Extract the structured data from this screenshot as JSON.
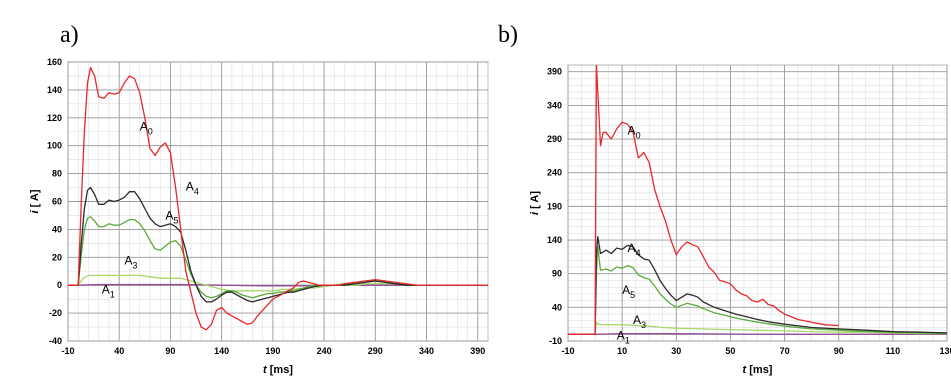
{
  "chart_data": [
    {
      "panel_label": "a)",
      "type": "line",
      "xlabel_italic": "t",
      "xlabel_unit": "[ms]",
      "ylabel_italic": "i",
      "ylabel_unit": "[ A]",
      "xlim": [
        -10,
        400
      ],
      "ylim": [
        -40,
        160
      ],
      "xticks": [
        "-10",
        "40",
        "90",
        "140",
        "190",
        "240",
        "290",
        "340",
        "390"
      ],
      "yticks": [
        "-40",
        "-20",
        "0",
        "20",
        "40",
        "60",
        "80",
        "100",
        "120",
        "140",
        "160"
      ],
      "grid": true,
      "series": [
        {
          "label_main": "A",
          "label_sub": "0",
          "color": "#e8282b",
          "label_at": [
            60,
            111
          ],
          "x": [
            -10,
            0,
            3,
            6,
            9,
            12,
            16,
            20,
            25,
            30,
            35,
            40,
            45,
            50,
            55,
            60,
            65,
            70,
            75,
            80,
            85,
            90,
            95,
            100,
            105,
            110,
            115,
            120,
            125,
            130,
            135,
            140,
            145,
            150,
            155,
            160,
            165,
            170,
            175,
            180,
            185,
            190,
            195,
            200,
            205,
            210,
            215,
            220,
            225,
            230,
            235,
            240,
            245,
            250,
            255,
            260,
            270,
            280,
            290,
            300,
            310,
            320,
            330,
            340,
            350,
            360,
            370,
            380,
            390,
            400
          ],
          "y": [
            0,
            0,
            60,
            110,
            145,
            156,
            150,
            135,
            134,
            138,
            137,
            138,
            145,
            150,
            148,
            138,
            120,
            98,
            93,
            99,
            102,
            95,
            70,
            40,
            10,
            -5,
            -20,
            -30,
            -32,
            -28,
            -18,
            -16,
            -20,
            -22,
            -24,
            -26,
            -28,
            -27,
            -22,
            -18,
            -14,
            -10,
            -8,
            -6,
            -4,
            -2,
            2,
            3,
            2,
            1,
            0,
            0,
            0,
            0,
            0,
            1,
            2,
            3,
            4,
            3,
            2,
            1,
            0,
            0,
            0,
            0,
            0,
            0,
            0,
            0
          ]
        },
        {
          "label_main": "A",
          "label_sub": "4",
          "color": "#2a2a2a",
          "label_at": [
            105,
            68
          ],
          "x": [
            -10,
            0,
            3,
            6,
            9,
            12,
            16,
            20,
            25,
            30,
            35,
            40,
            45,
            50,
            55,
            60,
            65,
            70,
            75,
            80,
            85,
            90,
            95,
            100,
            105,
            110,
            115,
            120,
            125,
            130,
            135,
            140,
            145,
            150,
            155,
            160,
            165,
            170,
            175,
            180,
            185,
            190,
            195,
            200,
            205,
            210,
            215,
            220,
            225,
            230,
            240,
            250,
            260,
            270,
            280,
            290,
            300,
            310,
            320,
            330,
            340,
            350,
            360,
            370,
            380,
            390,
            400
          ],
          "y": [
            0,
            0,
            30,
            55,
            68,
            70,
            65,
            58,
            58,
            61,
            60,
            61,
            63,
            67,
            67,
            62,
            55,
            48,
            44,
            42,
            43,
            44,
            42,
            38,
            25,
            10,
            0,
            -8,
            -12,
            -12,
            -10,
            -7,
            -5,
            -5,
            -7,
            -9,
            -11,
            -12,
            -11,
            -10,
            -9,
            -8,
            -7,
            -6,
            -5,
            -5,
            -4,
            -3,
            -2,
            -1,
            0,
            0,
            0,
            1,
            2,
            3,
            2,
            1,
            0,
            0,
            0,
            0,
            0,
            0,
            0,
            0,
            0
          ]
        },
        {
          "label_main": "A",
          "label_sub": "5",
          "color": "#5aaa3c",
          "label_at": [
            85,
            47
          ],
          "x": [
            -10,
            0,
            3,
            6,
            9,
            12,
            16,
            20,
            25,
            30,
            35,
            40,
            45,
            50,
            55,
            60,
            65,
            70,
            75,
            80,
            85,
            90,
            95,
            100,
            105,
            110,
            115,
            120,
            125,
            130,
            135,
            140,
            145,
            150,
            155,
            160,
            165,
            170,
            175,
            180,
            185,
            190,
            195,
            200,
            205,
            210,
            215,
            220,
            225,
            230,
            240,
            250,
            260,
            270,
            280,
            290,
            300,
            310,
            320,
            330,
            340,
            350,
            360,
            370,
            380,
            390,
            400
          ],
          "y": [
            0,
            0,
            22,
            40,
            48,
            49,
            46,
            42,
            42,
            44,
            43,
            43,
            45,
            47,
            47,
            44,
            39,
            32,
            26,
            25,
            28,
            31,
            32,
            28,
            18,
            8,
            0,
            -5,
            -8,
            -9,
            -8,
            -6,
            -4,
            -4,
            -5,
            -7,
            -8,
            -9,
            -8,
            -7,
            -6,
            -6,
            -5,
            -5,
            -4,
            -4,
            -3,
            -2,
            -1,
            0,
            0,
            0,
            1,
            2,
            3,
            3,
            2,
            1,
            0,
            0,
            0,
            0,
            0,
            0,
            0,
            0,
            0
          ]
        },
        {
          "label_main": "A",
          "label_sub": "3",
          "color": "#a8d86a",
          "label_at": [
            45,
            15
          ],
          "x": [
            -10,
            0,
            5,
            10,
            20,
            30,
            40,
            50,
            60,
            70,
            80,
            90,
            100,
            110,
            120,
            130,
            140,
            150,
            160,
            170,
            180,
            190,
            200,
            210,
            220,
            230,
            240,
            250,
            260,
            270,
            280,
            290,
            300,
            310,
            320,
            330,
            340,
            350,
            360,
            370,
            380,
            390,
            400
          ],
          "y": [
            0,
            0,
            5,
            7,
            7,
            7,
            7,
            7,
            7,
            6,
            5,
            5,
            5,
            3,
            1,
            -1,
            -3,
            -4,
            -4,
            -4,
            -4,
            -4,
            -3,
            -3,
            -2,
            -2,
            -1,
            0,
            0,
            0,
            1,
            1,
            1,
            1,
            1,
            0,
            0,
            0,
            0,
            0,
            0,
            0,
            0
          ]
        },
        {
          "label_main": "A",
          "label_sub": "1",
          "color": "#9b4d9b",
          "label_at": [
            23,
            -6
          ],
          "x": [
            -10,
            0,
            20,
            60,
            100,
            140,
            180,
            220,
            260,
            300,
            340,
            400
          ],
          "y": [
            0,
            0,
            0.5,
            0.5,
            0.5,
            0,
            -0.5,
            -0.5,
            0,
            0,
            0,
            0
          ]
        }
      ]
    },
    {
      "panel_label": "b)",
      "type": "line",
      "xlabel_italic": "t",
      "xlabel_unit": "[ms]",
      "ylabel_italic": "i",
      "ylabel_unit": "[ A]",
      "xlim": [
        -10,
        130
      ],
      "ylim": [
        -10,
        400
      ],
      "xticks": [
        "-10",
        "10",
        "30",
        "50",
        "70",
        "90",
        "110",
        "130"
      ],
      "yticks": [
        "-10",
        "40",
        "90",
        "140",
        "190",
        "240",
        "290",
        "340",
        "390"
      ],
      "grid": true,
      "series": [
        {
          "label_main": "A",
          "label_sub": "0",
          "color": "#e8282b",
          "label_at": [
            12,
            297
          ],
          "x": [
            -10,
            0,
            0.5,
            1,
            2,
            3,
            4,
            6,
            8,
            10,
            12,
            14,
            16,
            18,
            20,
            22,
            24,
            26,
            28,
            30,
            32,
            34,
            36,
            38,
            40,
            42,
            44,
            46,
            48,
            50,
            52,
            54,
            56,
            58,
            60,
            62,
            64,
            66,
            68,
            70,
            75,
            80,
            85,
            90
          ],
          "y": [
            0,
            0,
            400,
            360,
            280,
            300,
            300,
            290,
            305,
            315,
            312,
            300,
            262,
            270,
            255,
            215,
            190,
            168,
            140,
            118,
            130,
            137,
            133,
            130,
            115,
            100,
            92,
            80,
            78,
            75,
            66,
            60,
            57,
            50,
            48,
            52,
            44,
            42,
            35,
            30,
            22,
            18,
            14,
            13
          ]
        },
        {
          "label_main": "A",
          "label_sub": "4",
          "color": "#2a2a2a",
          "label_at": [
            12,
            122
          ],
          "x": [
            -10,
            0,
            0.5,
            1,
            2,
            3,
            4,
            6,
            8,
            10,
            12,
            14,
            16,
            18,
            20,
            22,
            24,
            26,
            28,
            30,
            32,
            34,
            36,
            38,
            40,
            44,
            48,
            52,
            56,
            60,
            65,
            70,
            80,
            90,
            100,
            110,
            120,
            130
          ],
          "y": [
            0,
            0,
            120,
            145,
            120,
            122,
            125,
            120,
            128,
            126,
            132,
            130,
            118,
            112,
            110,
            96,
            80,
            68,
            58,
            50,
            55,
            60,
            58,
            55,
            48,
            40,
            35,
            30,
            26,
            22,
            18,
            15,
            10,
            8,
            6,
            4,
            3,
            2
          ]
        },
        {
          "label_main": "A",
          "label_sub": "5",
          "color": "#5aaa3c",
          "label_at": [
            10,
            60
          ],
          "x": [
            -10,
            0,
            0.5,
            1,
            2,
            3,
            4,
            6,
            8,
            10,
            12,
            14,
            16,
            18,
            20,
            22,
            24,
            26,
            28,
            30,
            32,
            34,
            36,
            38,
            40,
            44,
            48,
            52,
            56,
            60,
            65,
            70,
            80,
            90,
            100,
            110,
            120,
            130
          ],
          "y": [
            0,
            0,
            90,
            130,
            95,
            96,
            97,
            94,
            100,
            98,
            102,
            99,
            88,
            84,
            82,
            72,
            60,
            52,
            45,
            40,
            43,
            46,
            44,
            42,
            38,
            32,
            28,
            24,
            21,
            18,
            15,
            12,
            8,
            6,
            4,
            3,
            2,
            1
          ]
        },
        {
          "label_main": "A",
          "label_sub": "3",
          "color": "#a8d86a",
          "label_at": [
            14,
            15
          ],
          "x": [
            -10,
            0,
            0.5,
            1,
            3,
            6,
            10,
            15,
            20,
            25,
            30,
            40,
            50,
            60,
            70,
            80,
            90,
            100,
            110,
            120,
            130
          ],
          "y": [
            0,
            0,
            18,
            15,
            14,
            14,
            14,
            13,
            12,
            10,
            9,
            8,
            7,
            6,
            5,
            4,
            3,
            3,
            2,
            1,
            1
          ]
        },
        {
          "label_main": "A",
          "label_sub": "1",
          "color": "#9b4d9b",
          "label_at": [
            8,
            -8
          ],
          "x": [
            -10,
            0,
            10,
            30,
            60,
            90,
            130
          ],
          "y": [
            0,
            0,
            1,
            1,
            0,
            0,
            0
          ]
        }
      ]
    }
  ]
}
